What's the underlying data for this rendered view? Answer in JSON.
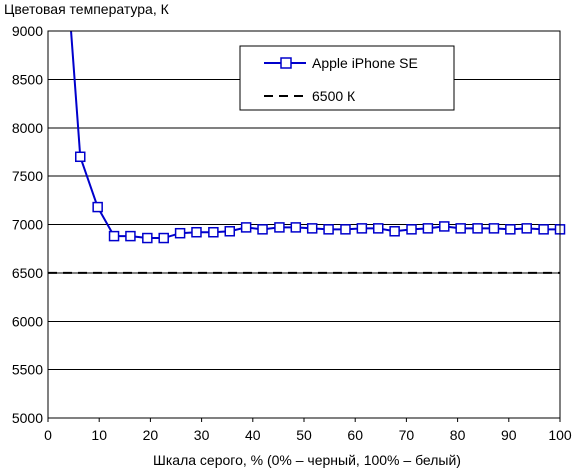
{
  "chart_data": {
    "type": "line",
    "title": "Цветовая температура, К",
    "xlabel": "Шкала серого, % (0% – черный, 100% – белый)",
    "ylabel": "",
    "xlim": [
      0,
      100
    ],
    "ylim": [
      5000,
      9000
    ],
    "x_ticks": [
      "0",
      "10",
      "20",
      "30",
      "40",
      "50",
      "60",
      "70",
      "80",
      "90",
      "100"
    ],
    "y_ticks": [
      "5000",
      "5500",
      "6000",
      "6500",
      "7000",
      "7500",
      "8000",
      "8500",
      "9000"
    ],
    "grid": "horizontal",
    "legend_position": "top-right",
    "series": [
      {
        "name": "Apple iPhone SE",
        "color": "#0000cc",
        "marker": "square",
        "x": [
          6.3,
          9.7,
          12.9,
          16.1,
          19.4,
          22.6,
          25.8,
          29.0,
          32.3,
          35.5,
          38.7,
          41.9,
          45.2,
          48.4,
          51.6,
          54.8,
          58.1,
          61.3,
          64.5,
          67.7,
          71.0,
          74.2,
          77.4,
          80.6,
          83.9,
          87.1,
          90.3,
          93.5,
          96.8,
          100.0
        ],
        "y": [
          7700,
          7180,
          6880,
          6880,
          6860,
          6860,
          6910,
          6920,
          6920,
          6930,
          6970,
          6950,
          6970,
          6970,
          6960,
          6950,
          6950,
          6960,
          6960,
          6930,
          6950,
          6960,
          6980,
          6960,
          6960,
          6960,
          6950,
          6960,
          6950,
          6950
        ],
        "offscale_start": {
          "x": 4.5,
          "y": 9000
        }
      },
      {
        "name": "6500 К",
        "color": "#000000",
        "style": "dashed",
        "x": [
          0,
          100
        ],
        "y": [
          6500,
          6500
        ]
      }
    ]
  }
}
